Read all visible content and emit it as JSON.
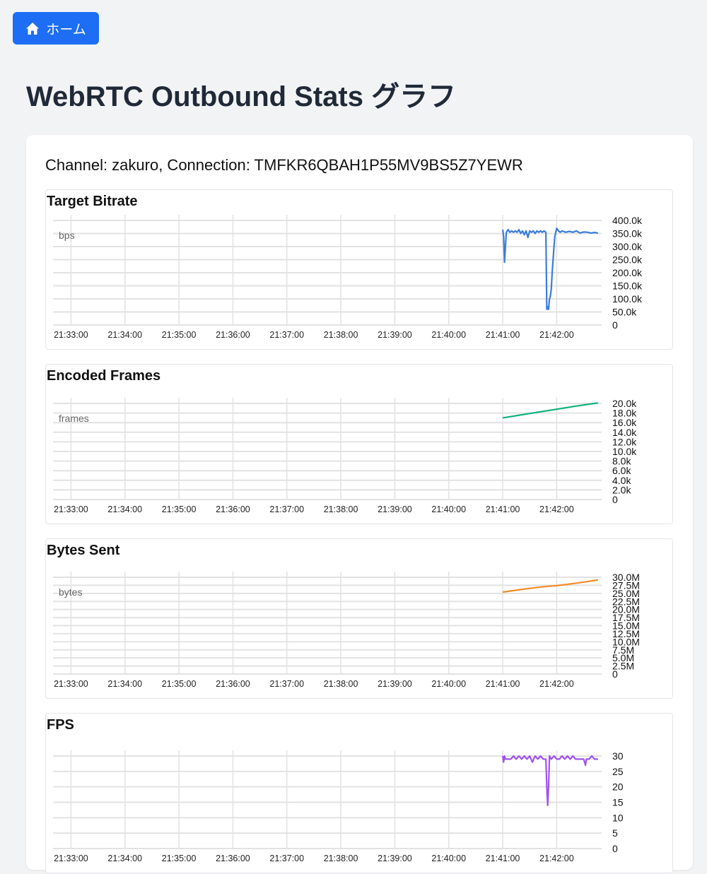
{
  "nav": {
    "home_label": "ホーム"
  },
  "page": {
    "title": "WebRTC Outbound Stats グラフ"
  },
  "connection": {
    "title": "Channel: zakuro, Connection: TMFKR6QBAH1P55MV9BS5Z7YEWR"
  },
  "colors": {
    "accent": "#1d6ef5"
  },
  "chart_data": [
    {
      "id": "target-bitrate",
      "type": "line",
      "title": "Target Bitrate",
      "unit_label": "bps",
      "color": "#3b7ddd",
      "x_ticks": [
        "21:33:00",
        "21:34:00",
        "21:35:00",
        "21:36:00",
        "21:37:00",
        "21:38:00",
        "21:39:00",
        "21:40:00",
        "21:41:00",
        "21:42:00"
      ],
      "xlim": [
        "21:32:40",
        "21:42:50"
      ],
      "ylim": [
        0,
        400000
      ],
      "y_ticks": [
        0,
        50000,
        100000,
        150000,
        200000,
        250000,
        300000,
        350000,
        400000
      ],
      "y_tick_labels": [
        "0",
        "50.0k",
        "100.0k",
        "150.0k",
        "200.0k",
        "250.0k",
        "300.0k",
        "350.0k",
        "400.0k"
      ],
      "grid": true,
      "series": [
        {
          "x": [
            "21:41:00",
            "21:41:01",
            "21:41:02",
            "21:41:03",
            "21:41:04",
            "21:41:06",
            "21:41:08",
            "21:41:10",
            "21:41:12",
            "21:41:14",
            "21:41:16",
            "21:41:18",
            "21:41:20",
            "21:41:22",
            "21:41:24",
            "21:41:26",
            "21:41:28",
            "21:41:30",
            "21:41:32",
            "21:41:34",
            "21:41:36",
            "21:41:38",
            "21:41:40",
            "21:41:42",
            "21:41:44",
            "21:41:46",
            "21:41:48",
            "21:41:49",
            "21:41:50",
            "21:41:51",
            "21:41:52",
            "21:41:53",
            "21:41:54",
            "21:41:55",
            "21:41:56",
            "21:41:57",
            "21:41:58",
            "21:42:00",
            "21:42:02",
            "21:42:04",
            "21:42:06",
            "21:42:10",
            "21:42:14",
            "21:42:18",
            "21:42:22",
            "21:42:26",
            "21:42:30",
            "21:42:34",
            "21:42:38",
            "21:42:42",
            "21:42:46"
          ],
          "y": [
            365000,
            340000,
            240000,
            300000,
            355000,
            365000,
            355000,
            360000,
            355000,
            360000,
            355000,
            365000,
            350000,
            360000,
            345000,
            360000,
            335000,
            360000,
            355000,
            360000,
            350000,
            360000,
            355000,
            360000,
            355000,
            360000,
            355000,
            60000,
            70000,
            60000,
            100000,
            110000,
            140000,
            200000,
            250000,
            300000,
            340000,
            370000,
            360000,
            355000,
            360000,
            355000,
            358000,
            355000,
            360000,
            352000,
            356000,
            355000,
            352000,
            354000,
            352000
          ]
        }
      ]
    },
    {
      "id": "encoded-frames",
      "type": "line",
      "title": "Encoded Frames",
      "unit_label": "frames",
      "color": "#10b07a",
      "x_ticks": [
        "21:33:00",
        "21:34:00",
        "21:35:00",
        "21:36:00",
        "21:37:00",
        "21:38:00",
        "21:39:00",
        "21:40:00",
        "21:41:00",
        "21:42:00"
      ],
      "xlim": [
        "21:32:40",
        "21:42:50"
      ],
      "ylim": [
        0,
        20000
      ],
      "y_ticks": [
        0,
        2000,
        4000,
        6000,
        8000,
        10000,
        12000,
        14000,
        16000,
        18000,
        20000
      ],
      "y_tick_labels": [
        "0",
        "2.0k",
        "4.0k",
        "6.0k",
        "8.0k",
        "10.0k",
        "12.0k",
        "14.0k",
        "16.0k",
        "18.0k",
        "20.0k"
      ],
      "grid": true,
      "series": [
        {
          "x": [
            "21:41:00",
            "21:41:20",
            "21:41:40",
            "21:42:00",
            "21:42:20",
            "21:42:40",
            "21:42:46"
          ],
          "y": [
            17000,
            17600,
            18200,
            18800,
            19400,
            19950,
            20100
          ]
        }
      ]
    },
    {
      "id": "bytes-sent",
      "type": "line",
      "title": "Bytes Sent",
      "unit_label": "bytes",
      "color": "#f28c28",
      "x_ticks": [
        "21:33:00",
        "21:34:00",
        "21:35:00",
        "21:36:00",
        "21:37:00",
        "21:38:00",
        "21:39:00",
        "21:40:00",
        "21:41:00",
        "21:42:00"
      ],
      "xlim": [
        "21:32:40",
        "21:42:50"
      ],
      "ylim": [
        0,
        30000000
      ],
      "y_ticks": [
        0,
        2500000,
        5000000,
        7500000,
        10000000,
        12500000,
        15000000,
        17500000,
        20000000,
        22500000,
        25000000,
        27500000,
        30000000
      ],
      "y_tick_labels": [
        "0",
        "2.5M",
        "5.0M",
        "7.5M",
        "10.0M",
        "12.5M",
        "15.0M",
        "17.5M",
        "20.0M",
        "22.5M",
        "25.0M",
        "27.5M",
        "30.0M"
      ],
      "grid": true,
      "series": [
        {
          "x": [
            "21:41:00",
            "21:41:20",
            "21:41:40",
            "21:41:50",
            "21:42:00",
            "21:42:20",
            "21:42:40",
            "21:42:46"
          ],
          "y": [
            25400000,
            26200000,
            26900000,
            27200000,
            27400000,
            28100000,
            28900000,
            29200000
          ]
        }
      ]
    },
    {
      "id": "fps",
      "type": "line",
      "title": "FPS",
      "unit_label": "",
      "color": "#a052ee",
      "x_ticks": [
        "21:33:00",
        "21:34:00",
        "21:35:00",
        "21:36:00",
        "21:37:00",
        "21:38:00",
        "21:39:00",
        "21:40:00",
        "21:41:00",
        "21:42:00"
      ],
      "xlim": [
        "21:32:40",
        "21:42:50"
      ],
      "ylim": [
        0,
        30
      ],
      "y_ticks": [
        0,
        5,
        10,
        15,
        20,
        25,
        30
      ],
      "y_tick_labels": [
        "0",
        "5",
        "10",
        "15",
        "20",
        "25",
        "30"
      ],
      "grid": true,
      "series": [
        {
          "x": [
            "21:41:00",
            "21:41:01",
            "21:41:02",
            "21:41:03",
            "21:41:06",
            "21:41:09",
            "21:41:12",
            "21:41:15",
            "21:41:18",
            "21:41:21",
            "21:41:24",
            "21:41:27",
            "21:41:30",
            "21:41:33",
            "21:41:36",
            "21:41:39",
            "21:41:42",
            "21:41:45",
            "21:41:48",
            "21:41:49",
            "21:41:50",
            "21:41:51",
            "21:41:52",
            "21:41:54",
            "21:41:57",
            "21:42:00",
            "21:42:03",
            "21:42:06",
            "21:42:09",
            "21:42:12",
            "21:42:15",
            "21:42:18",
            "21:42:21",
            "21:42:24",
            "21:42:27",
            "21:42:30",
            "21:42:32",
            "21:42:33",
            "21:42:36",
            "21:42:39",
            "21:42:42",
            "21:42:46"
          ],
          "y": [
            30,
            28,
            30,
            29,
            29,
            29,
            30,
            29,
            30,
            29,
            30,
            29,
            30,
            28,
            30,
            29,
            30,
            29,
            29,
            20,
            14,
            20,
            30,
            29,
            30,
            29,
            29,
            30,
            29,
            30,
            29,
            30,
            29,
            29,
            29,
            29,
            27,
            29,
            29,
            30,
            29,
            29
          ]
        }
      ]
    }
  ]
}
